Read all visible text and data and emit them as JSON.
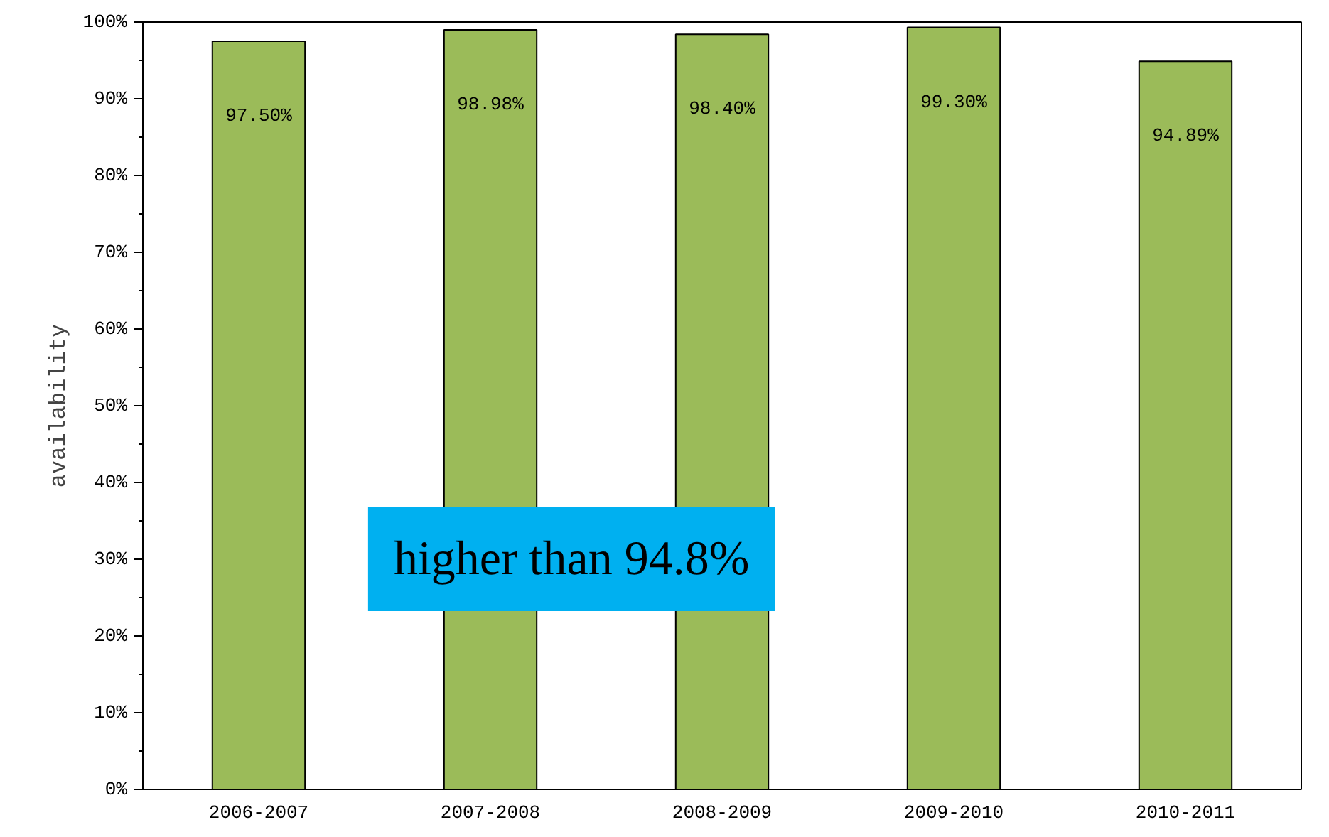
{
  "chart_data": {
    "type": "bar",
    "ylabel": "availability",
    "categories": [
      "2006-2007",
      "2007-2008",
      "2008-2009",
      "2009-2010",
      "2010-2011"
    ],
    "values": [
      97.5,
      98.98,
      98.4,
      99.3,
      94.89
    ],
    "color": "#9bbb59",
    "value_labels": [
      "97.50%",
      "98.98%",
      "98.40%",
      "99.30%",
      "94.89%"
    ],
    "ylim": [
      0,
      100
    ],
    "yticks": [
      {
        "value": 0,
        "label": "0%"
      },
      {
        "value": 10,
        "label": "10%"
      },
      {
        "value": 20,
        "label": "20%"
      },
      {
        "value": 30,
        "label": "30%"
      },
      {
        "value": 40,
        "label": "40%"
      },
      {
        "value": 50,
        "label": "50%"
      },
      {
        "value": 60,
        "label": "60%"
      },
      {
        "value": 70,
        "label": "70%"
      },
      {
        "value": 80,
        "label": "80%"
      },
      {
        "value": 90,
        "label": "90%"
      },
      {
        "value": 100,
        "label": "100%"
      }
    ],
    "annotations": [
      "higher than 94.8%"
    ],
    "grid": false
  }
}
